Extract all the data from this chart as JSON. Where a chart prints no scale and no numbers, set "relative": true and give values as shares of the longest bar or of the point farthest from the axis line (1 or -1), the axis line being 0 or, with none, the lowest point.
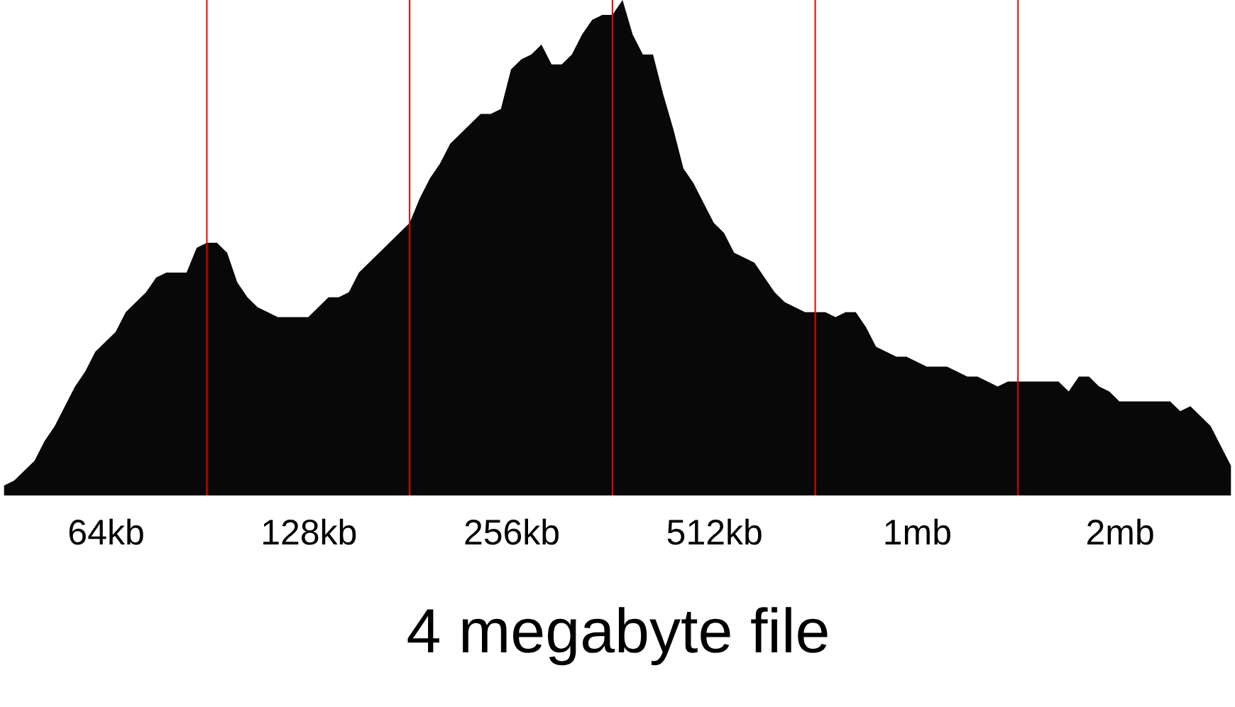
{
  "chart_data": {
    "type": "area",
    "xlabel": "4 megabyte file",
    "relative": true,
    "color": "#080808",
    "categories": [
      null,
      null,
      null,
      null,
      null,
      null,
      null,
      null,
      null,
      null,
      "64kb",
      null,
      null,
      null,
      null,
      null,
      null,
      null,
      null,
      null,
      null,
      null,
      null,
      null,
      null,
      null,
      null,
      null,
      null,
      null,
      "128kb",
      null,
      null,
      null,
      null,
      null,
      null,
      null,
      null,
      null,
      null,
      null,
      null,
      null,
      null,
      null,
      null,
      null,
      null,
      null,
      "256kb",
      null,
      null,
      null,
      null,
      null,
      null,
      null,
      null,
      null,
      null,
      null,
      null,
      null,
      null,
      null,
      null,
      null,
      null,
      null,
      "512kb",
      null,
      null,
      null,
      null,
      null,
      null,
      null,
      null,
      null,
      null,
      null,
      null,
      null,
      null,
      null,
      null,
      null,
      null,
      null,
      "1mb",
      null,
      null,
      null,
      null,
      null,
      null,
      null,
      null,
      null,
      null,
      null,
      null,
      null,
      null,
      null,
      null,
      null,
      null,
      null,
      "2mb",
      null,
      null,
      null,
      null,
      null,
      null,
      null,
      null,
      null,
      null,
      null
    ],
    "values": [
      0.02,
      0.03,
      0.05,
      0.07,
      0.11,
      0.14,
      0.18,
      0.22,
      0.25,
      0.29,
      0.31,
      0.33,
      0.37,
      0.39,
      0.41,
      0.44,
      0.45,
      0.45,
      0.45,
      0.5,
      0.51,
      0.51,
      0.49,
      0.43,
      0.4,
      0.38,
      0.37,
      0.36,
      0.36,
      0.36,
      0.36,
      0.38,
      0.4,
      0.4,
      0.41,
      0.45,
      0.47,
      0.49,
      0.51,
      0.53,
      0.55,
      0.6,
      0.64,
      0.67,
      0.71,
      0.73,
      0.75,
      0.77,
      0.77,
      0.78,
      0.86,
      0.88,
      0.89,
      0.91,
      0.87,
      0.87,
      0.89,
      0.93,
      0.96,
      0.97,
      0.97,
      1,
      0.93,
      0.89,
      0.89,
      0.81,
      0.74,
      0.66,
      0.63,
      0.59,
      0.55,
      0.53,
      0.49,
      0.48,
      0.47,
      0.44,
      0.41,
      0.39,
      0.38,
      0.37,
      0.37,
      0.37,
      0.36,
      0.37,
      0.37,
      0.34,
      0.3,
      0.29,
      0.28,
      0.28,
      0.27,
      0.26,
      0.26,
      0.26,
      0.25,
      0.24,
      0.24,
      0.23,
      0.22,
      0.23,
      0.23,
      0.23,
      0.23,
      0.23,
      0.23,
      0.21,
      0.24,
      0.24,
      0.22,
      0.21,
      0.19,
      0.19,
      0.19,
      0.19,
      0.19,
      0.19,
      0.17,
      0.18,
      0.16,
      0.14,
      0.1,
      0.06
    ]
  }
}
